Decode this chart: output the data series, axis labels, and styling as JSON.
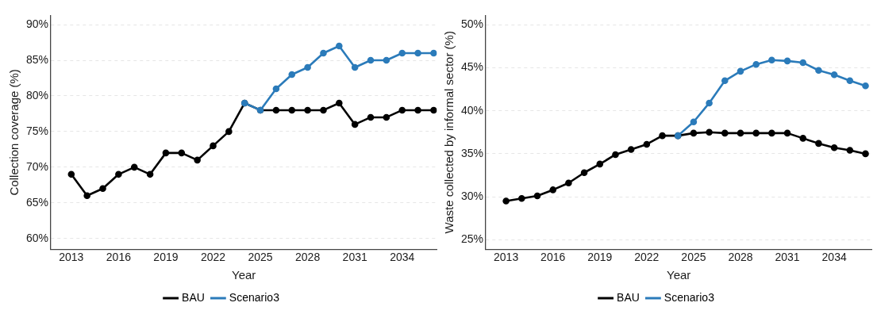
{
  "chart_data": [
    {
      "type": "line",
      "ylabel": "Collection coverage (%)",
      "xlabel": "Year",
      "x": [
        2013,
        2014,
        2015,
        2016,
        2017,
        2018,
        2019,
        2020,
        2021,
        2022,
        2023,
        2024,
        2025,
        2026,
        2027,
        2028,
        2029,
        2030,
        2031,
        2032,
        2033,
        2034,
        2035,
        2036
      ],
      "series": [
        {
          "name": "BAU",
          "color": "#000000",
          "values": [
            69,
            66,
            67,
            69,
            70,
            69,
            72,
            72,
            71,
            73,
            75,
            79,
            78,
            78,
            78,
            78,
            78,
            79,
            76,
            77,
            77,
            78,
            78,
            78
          ]
        },
        {
          "name": "Scenario3",
          "color": "#2b7bba",
          "values": [
            null,
            null,
            null,
            null,
            null,
            null,
            null,
            null,
            null,
            null,
            null,
            79,
            78,
            81,
            83,
            84,
            86,
            87,
            84,
            85,
            85,
            86,
            86,
            86
          ]
        }
      ],
      "xlim": [
        2011.7,
        2036.2
      ],
      "xticks": [
        2013,
        2016,
        2019,
        2022,
        2025,
        2028,
        2031,
        2034
      ],
      "ylim": [
        58.5,
        91.3
      ],
      "yticks": [
        {
          "value": 60,
          "label": "60%"
        },
        {
          "value": 65,
          "label": "65%"
        },
        {
          "value": 70,
          "label": "70%"
        },
        {
          "value": 75,
          "label": "75%"
        },
        {
          "value": 80,
          "label": "80%"
        },
        {
          "value": 85,
          "label": "85%"
        },
        {
          "value": 90,
          "label": "90%"
        }
      ],
      "grid": "y",
      "legend": "bottom",
      "marker": "circle",
      "line_style": "solid"
    },
    {
      "type": "line",
      "ylabel": "Waste collected by informal sector (%)",
      "xlabel": "Year",
      "x": [
        2013,
        2014,
        2015,
        2016,
        2017,
        2018,
        2019,
        2020,
        2021,
        2022,
        2023,
        2024,
        2025,
        2026,
        2027,
        2028,
        2029,
        2030,
        2031,
        2032,
        2033,
        2034,
        2035,
        2036
      ],
      "series": [
        {
          "name": "BAU",
          "color": "#000000",
          "values": [
            29.5,
            29.8,
            30.1,
            30.8,
            31.6,
            32.8,
            33.8,
            34.9,
            35.5,
            36.1,
            37.1,
            37.1,
            37.4,
            37.5,
            37.4,
            37.4,
            37.4,
            37.4,
            37.4,
            36.8,
            36.2,
            35.7,
            35.4,
            35.0
          ]
        },
        {
          "name": "Scenario3",
          "color": "#2b7bba",
          "values": [
            null,
            null,
            null,
            null,
            null,
            null,
            null,
            null,
            null,
            null,
            null,
            37.1,
            38.7,
            40.9,
            43.5,
            44.6,
            45.4,
            45.9,
            45.8,
            45.6,
            44.7,
            44.2,
            43.5,
            42.9
          ]
        }
      ],
      "xlim": [
        2011.7,
        2036.4
      ],
      "xticks": [
        2013,
        2016,
        2019,
        2022,
        2025,
        2028,
        2031,
        2034
      ],
      "ylim": [
        23.9,
        51.1
      ],
      "yticks": [
        {
          "value": 25,
          "label": "25%"
        },
        {
          "value": 30,
          "label": "30%"
        },
        {
          "value": 35,
          "label": "35%"
        },
        {
          "value": 40,
          "label": "40%"
        },
        {
          "value": 45,
          "label": "45%"
        },
        {
          "value": 50,
          "label": "50%"
        }
      ],
      "grid": "y",
      "legend": "bottom",
      "marker": "circle",
      "line_style": "solid"
    }
  ]
}
